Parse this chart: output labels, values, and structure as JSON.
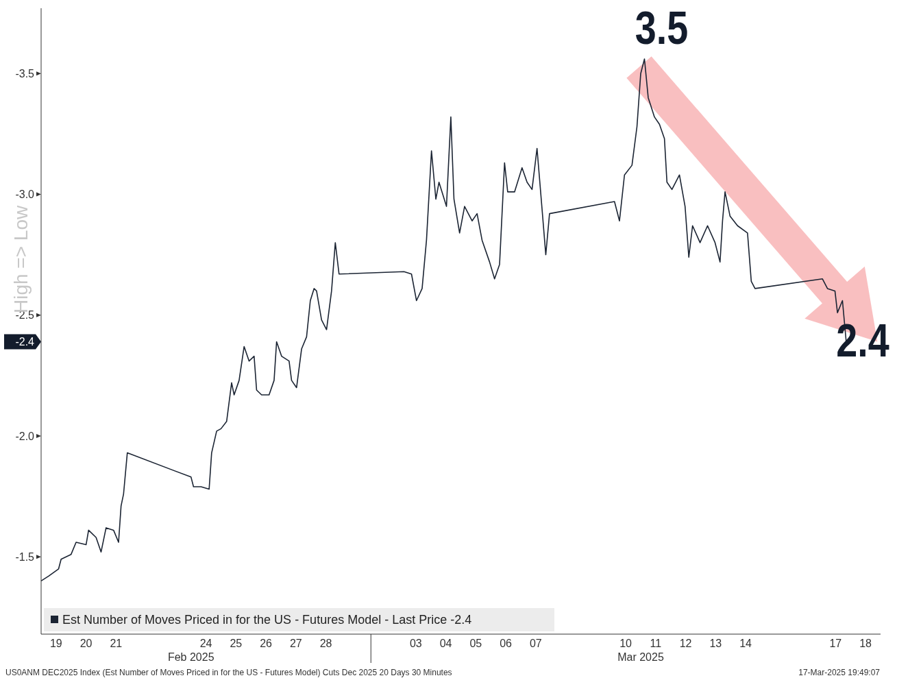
{
  "chart_data": {
    "type": "line",
    "ylabel": "High => Low",
    "x": [
      "2025-02-19T00:00",
      "2025-02-19T06:00",
      "2025-02-19T14:00",
      "2025-02-19T16:00",
      "2025-02-20T00:00",
      "2025-02-20T04:00",
      "2025-02-20T12:00",
      "2025-02-20T14:00",
      "2025-02-20T20:00",
      "2025-02-21T00:00",
      "2025-02-21T04:00",
      "2025-02-21T10:00",
      "2025-02-21T14:00",
      "2025-02-21T16:00",
      "2025-02-21T18:00",
      "2025-02-21T21:00",
      "2025-02-24T00:00",
      "2025-02-24T02:00",
      "2025-02-24T08:00",
      "2025-02-24T14:30",
      "2025-02-24T16:30",
      "2025-02-24T20:30",
      "2025-02-25T00:00",
      "2025-02-25T04:30",
      "2025-02-25T08:30",
      "2025-02-25T10:30",
      "2025-02-25T14:30",
      "2025-02-25T18:30",
      "2025-02-25T22:30",
      "2025-02-26T02:30",
      "2025-02-26T04:30",
      "2025-02-26T08:30",
      "2025-02-26T14:30",
      "2025-02-26T18:30",
      "2025-02-26T20:30",
      "2025-02-27T00:30",
      "2025-02-27T06:30",
      "2025-02-27T08:30",
      "2025-02-27T12:30",
      "2025-02-27T16:30",
      "2025-02-27T20:30",
      "2025-02-27T23:30",
      "2025-02-28T02:30",
      "2025-02-28T04:30",
      "2025-02-28T08:30",
      "2025-02-28T12:30",
      "2025-02-28T16:30",
      "2025-02-28T19:30",
      "2025-02-28T22:30",
      "2025-03-03T02:30",
      "2025-03-03T08:30",
      "2025-03-03T12:30",
      "2025-03-03T17:00",
      "2025-03-03T20:30",
      "2025-03-04T00:30",
      "2025-03-04T04:00",
      "2025-03-04T06:30",
      "2025-03-04T12:30",
      "2025-03-04T16:00",
      "2025-03-04T18:30",
      "2025-03-04T23:00",
      "2025-03-05T03:00",
      "2025-03-05T09:00",
      "2025-03-05T13:00",
      "2025-03-05T17:00",
      "2025-03-05T23:00",
      "2025-03-06T03:00",
      "2025-03-06T07:00",
      "2025-03-06T11:00",
      "2025-03-06T13:30",
      "2025-03-06T19:00",
      "2025-03-07T01:00",
      "2025-03-07T05:00",
      "2025-03-07T09:00",
      "2025-03-07T13:00",
      "2025-03-07T17:00",
      "2025-03-07T20:00",
      "2025-03-07T23:00",
      "2025-03-10T03:00",
      "2025-03-10T07:00",
      "2025-03-10T11:00",
      "2025-03-10T17:00",
      "2025-03-10T21:00",
      "2025-03-11T00:00",
      "2025-03-11T03:00",
      "2025-03-11T06:00",
      "2025-03-11T11:00",
      "2025-03-11T15:00",
      "2025-03-11T19:00",
      "2025-03-11T21:00",
      "2025-03-12T01:00",
      "2025-03-12T07:00",
      "2025-03-12T11:30",
      "2025-03-12T14:30",
      "2025-03-12T17:30",
      "2025-03-12T23:30",
      "2025-03-13T05:30",
      "2025-03-13T11:30",
      "2025-03-13T15:30",
      "2025-03-13T17:30",
      "2025-03-13T19:30",
      "2025-03-13T23:30",
      "2025-03-14T05:30",
      "2025-03-14T13:30",
      "2025-03-14T16:30",
      "2025-03-14T19:30",
      "2025-03-17T01:30",
      "2025-03-17T05:30",
      "2025-03-17T11:30",
      "2025-03-17T13:30",
      "2025-03-17T17:30",
      "2025-03-17T20:30",
      "2025-03-17T23:30"
    ],
    "series": [
      {
        "name": "Est Number of Moves Priced in for the US - Futures Model - Last Price -2.4",
        "color": "#1b2433",
        "values": [
          -1.4,
          -1.42,
          -1.45,
          -1.49,
          -1.51,
          -1.56,
          -1.55,
          -1.61,
          -1.58,
          -1.52,
          -1.62,
          -1.61,
          -1.56,
          -1.71,
          -1.76,
          -1.93,
          -1.83,
          -1.79,
          -1.79,
          -1.78,
          -1.93,
          -2.02,
          -2.03,
          -2.06,
          -2.22,
          -2.17,
          -2.23,
          -2.37,
          -2.31,
          -2.33,
          -2.19,
          -2.17,
          -2.17,
          -2.23,
          -2.39,
          -2.33,
          -2.31,
          -2.23,
          -2.2,
          -2.36,
          -2.41,
          -2.56,
          -2.61,
          -2.6,
          -2.48,
          -2.44,
          -2.6,
          -2.8,
          -2.67,
          -2.68,
          -2.67,
          -2.56,
          -2.61,
          -2.81,
          -3.18,
          -2.98,
          -3.05,
          -2.95,
          -3.32,
          -2.98,
          -2.84,
          -2.95,
          -2.89,
          -2.92,
          -2.81,
          -2.72,
          -2.65,
          -2.71,
          -3.13,
          -3.01,
          -3.01,
          -3.11,
          -3.05,
          -3.02,
          -3.19,
          -2.94,
          -2.75,
          -2.92,
          -2.97,
          -2.89,
          -3.08,
          -3.12,
          -3.28,
          -3.5,
          -3.56,
          -3.4,
          -3.32,
          -3.29,
          -3.23,
          -3.05,
          -3.02,
          -3.08,
          -2.95,
          -2.74,
          -2.87,
          -2.8,
          -2.87,
          -2.8,
          -2.72,
          -2.89,
          -3.01,
          -2.91,
          -2.87,
          -2.84,
          -2.64,
          -2.61,
          -2.65,
          -2.61,
          -2.6,
          -2.51,
          -2.56,
          -2.39,
          -2.39
        ]
      }
    ],
    "xlim": [
      "2025-02-19T00:00",
      "2025-03-19T00:00"
    ],
    "xticks": [
      {
        "value": "2025-02-19T12:00",
        "label": "19"
      },
      {
        "value": "2025-02-20T12:00",
        "label": "20"
      },
      {
        "value": "2025-02-21T12:00",
        "label": "21"
      },
      {
        "value": "2025-02-24T12:00",
        "label": "24"
      },
      {
        "value": "2025-02-25T12:00",
        "label": "25"
      },
      {
        "value": "2025-02-26T12:00",
        "label": "26"
      },
      {
        "value": "2025-02-27T12:00",
        "label": "27"
      },
      {
        "value": "2025-02-28T12:00",
        "label": "28"
      },
      {
        "value": "2025-03-03T12:00",
        "label": "03"
      },
      {
        "value": "2025-03-04T12:00",
        "label": "04"
      },
      {
        "value": "2025-03-05T12:00",
        "label": "05"
      },
      {
        "value": "2025-03-06T12:00",
        "label": "06"
      },
      {
        "value": "2025-03-07T12:00",
        "label": "07"
      },
      {
        "value": "2025-03-10T12:00",
        "label": "10"
      },
      {
        "value": "2025-03-11T12:00",
        "label": "11"
      },
      {
        "value": "2025-03-12T12:00",
        "label": "12"
      },
      {
        "value": "2025-03-13T12:00",
        "label": "13"
      },
      {
        "value": "2025-03-14T12:00",
        "label": "14"
      },
      {
        "value": "2025-03-17T12:00",
        "label": "17"
      },
      {
        "value": "2025-03-18T12:00",
        "label": "18"
      }
    ],
    "ylim": [
      -1.18,
      -3.77
    ],
    "yticks": [
      {
        "value": -3.5,
        "label": "-3.5"
      },
      {
        "value": -3,
        "label": "-3.0"
      },
      {
        "value": -2.5,
        "label": "-2.5"
      },
      {
        "value": -2,
        "label": "-2.0"
      },
      {
        "value": -1.5,
        "label": "-1.5"
      }
    ],
    "grid": false,
    "legend": "bottom left",
    "marker": "none",
    "line_style": "solid",
    "annotations": [
      {
        "text": "3.5",
        "x": "2025-03-11T03:00",
        "y": -3.56
      },
      {
        "text": "2.4",
        "x": "2025-03-17T23:30",
        "y": -2.39
      },
      "-2.4",
      "Feb 2025",
      "Mar 2025",
      "US0ANM DEC2025 Index (Est Number of Moves Priced in for the US - Futures Model) Cuts Dec 2025 20 Days 30 Minutes",
      "17-Mar-2025 19:49:07"
    ]
  }
}
